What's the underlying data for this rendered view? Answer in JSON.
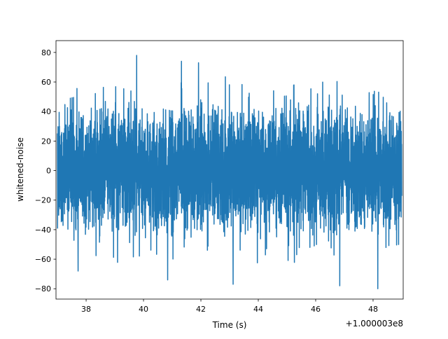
{
  "chart_data": {
    "type": "line",
    "title": "",
    "xlabel": "Time (s)",
    "ylabel": "whitened-noise",
    "x_offset_label": "+1.000003e8",
    "xlim": [
      36.95,
      49.05
    ],
    "ylim": [
      -87,
      88
    ],
    "x_ticks": [
      38,
      40,
      42,
      44,
      46,
      48
    ],
    "x_tick_labels": [
      "38",
      "40",
      "42",
      "44",
      "46",
      "48"
    ],
    "y_ticks": [
      -80,
      -60,
      -40,
      -20,
      0,
      20,
      40,
      60,
      80
    ],
    "y_tick_labels": [
      "−80",
      "−60",
      "−40",
      "−20",
      "0",
      "20",
      "40",
      "60",
      "80"
    ],
    "grid": false,
    "legend": "none",
    "colors": {
      "series": "#1f77b4",
      "axes": "#000000",
      "background": "#ffffff"
    },
    "series": [
      {
        "x_start": 37.0,
        "x_end": 49.0,
        "n_points": 2400,
        "typical_range": [
          -45,
          45
        ],
        "max": 78,
        "min": -80
      }
    ]
  }
}
